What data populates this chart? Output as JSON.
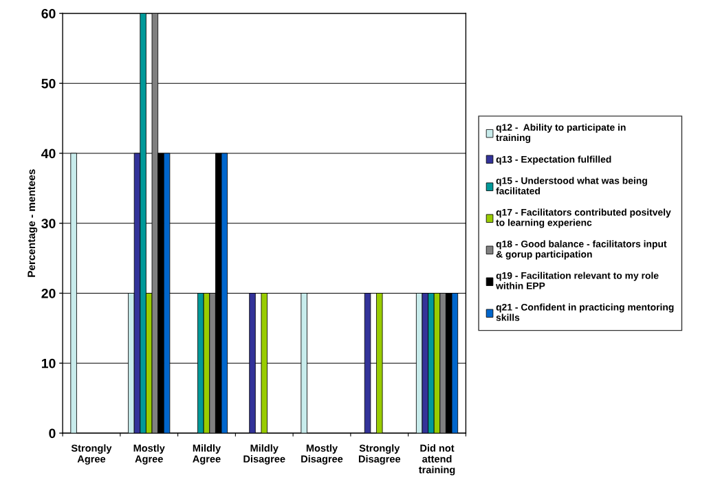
{
  "chart_data": {
    "type": "bar",
    "ylabel": "Percentage - mentees",
    "categories": [
      "Strongly Agree",
      "Mostly Agree",
      "Mildly Agree",
      "Mildly Disagree",
      "Mostly Disagree",
      "Strongly Disagree",
      "Did not attend training"
    ],
    "series": [
      {
        "name": "q12 -  Ability to participate in training",
        "color": "#c8ecec",
        "values": [
          40,
          20,
          null,
          null,
          20,
          null,
          20
        ]
      },
      {
        "name": "q13 - Expectation fulfilled",
        "color": "#333399",
        "values": [
          null,
          40,
          null,
          20,
          null,
          20,
          20
        ]
      },
      {
        "name": "q15 - Understood what was being facilitated",
        "color": "#009999",
        "values": [
          null,
          60,
          20,
          null,
          null,
          null,
          20
        ]
      },
      {
        "name": "q17 - Facilitators contributed positvely to learning experienc",
        "color": "#99cc00",
        "values": [
          null,
          20,
          20,
          20,
          null,
          20,
          20
        ]
      },
      {
        "name": "q18 - Good balance - facilitators input & gorup participation",
        "color": "#808080",
        "values": [
          null,
          60,
          20,
          null,
          null,
          null,
          20
        ]
      },
      {
        "name": "q19 - Facilitation relevant to my role within EPP",
        "color": "#000000",
        "values": [
          null,
          40,
          40,
          null,
          null,
          null,
          20
        ]
      },
      {
        "name": "q21 - Confident in practicing mentoring skills",
        "color": "#0066cc",
        "values": [
          null,
          40,
          40,
          null,
          null,
          null,
          20
        ]
      }
    ],
    "ylim": [
      0,
      60
    ],
    "yticks": [
      0,
      10,
      20,
      30,
      40,
      50,
      60
    ],
    "grid": "y",
    "legend": "right"
  }
}
